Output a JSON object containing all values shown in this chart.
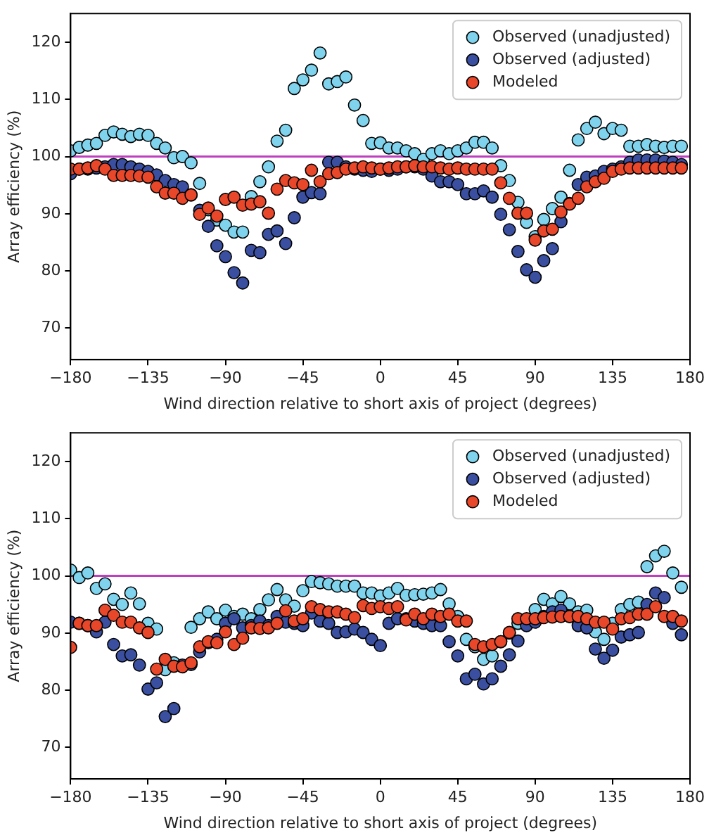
{
  "chart_data": [
    {
      "type": "scatter",
      "xlabel": "Wind direction relative to short axis of project (degrees)",
      "ylabel": "Array efficiency (%)",
      "x": [
        -180,
        -175,
        -170,
        -165,
        -160,
        -155,
        -150,
        -145,
        -140,
        -135,
        -130,
        -125,
        -120,
        -115,
        -110,
        -105,
        -100,
        -95,
        -90,
        -85,
        -80,
        -75,
        -70,
        -65,
        -60,
        -55,
        -50,
        -45,
        -40,
        -35,
        -30,
        -25,
        -20,
        -15,
        -10,
        -5,
        0,
        5,
        10,
        15,
        20,
        25,
        30,
        35,
        40,
        45,
        50,
        55,
        60,
        65,
        70,
        75,
        80,
        85,
        90,
        95,
        100,
        105,
        110,
        115,
        120,
        125,
        130,
        135,
        140,
        145,
        150,
        155,
        160,
        165,
        170,
        175
      ],
      "xlim": [
        -180,
        180
      ],
      "xticks": [
        -180,
        -135,
        -90,
        -45,
        0,
        45,
        90,
        135,
        180
      ],
      "ylim": [
        64.5,
        125
      ],
      "yticks": [
        70,
        80,
        90,
        100,
        110,
        120
      ],
      "grid": false,
      "legend": "top right",
      "marker": "circle",
      "ref_lines": [
        {
          "axis": "y",
          "value": 100,
          "color": "#bf40bf"
        }
      ],
      "series": [
        {
          "name": "Observed (unadjusted)",
          "color": "#7fd3ec",
          "values": [
            101,
            101.6,
            102,
            102.3,
            103.7,
            104.3,
            103.9,
            103.5,
            103.9,
            103.7,
            102.3,
            101.5,
            99.8,
            100,
            98.9,
            95.3,
            90.7,
            88.9,
            88,
            86.8,
            86.8,
            93,
            95.6,
            98.2,
            102.7,
            104.6,
            111.9,
            113.4,
            115.1,
            118.1,
            112.7,
            113.1,
            113.9,
            109,
            106.3,
            102.3,
            102.4,
            101.5,
            101.5,
            101,
            100.5,
            99.5,
            100.5,
            101,
            100.5,
            101,
            101.5,
            102.5,
            102.5,
            101.5,
            98.4,
            95.8,
            92,
            88.5,
            86,
            89,
            90.9,
            92.9,
            97.6,
            102.9,
            104.9,
            106,
            104,
            104.9,
            104.6,
            101.8,
            101.8,
            102.1,
            101.8,
            101.6,
            101.8,
            101.8
          ]
        },
        {
          "name": "Observed (adjusted)",
          "color": "#3a4fa0",
          "values": [
            97,
            97.8,
            97.8,
            98,
            98.2,
            98.6,
            98.6,
            98.2,
            97.8,
            97.4,
            96.8,
            95.8,
            95.1,
            94.7,
            93.3,
            90.6,
            87.8,
            84.4,
            82.5,
            79.7,
            77.9,
            83.6,
            83.2,
            86.4,
            87,
            84.8,
            89.3,
            92.9,
            93.7,
            93.5,
            99,
            99,
            98.2,
            97.8,
            97.6,
            97.4,
            97.8,
            97.6,
            97.8,
            98.2,
            98.2,
            97.8,
            96.6,
            95.6,
            95.6,
            95.1,
            93.5,
            93.5,
            94,
            92.9,
            89.9,
            87.2,
            83.4,
            80.2,
            78.9,
            81.8,
            83.9,
            88.6,
            91.8,
            95.1,
            96.4,
            96.6,
            97.4,
            97.8,
            98.2,
            99,
            99.4,
            99.4,
            99.4,
            99.2,
            99,
            98.6
          ]
        },
        {
          "name": "Modeled",
          "color": "#e8472a",
          "values": [
            97.8,
            97.8,
            98,
            98.4,
            97.8,
            96.7,
            96.7,
            96.7,
            96.6,
            96.4,
            94.7,
            93.6,
            93.6,
            92.7,
            93.3,
            89.9,
            91,
            89.6,
            92.5,
            92.9,
            91.5,
            91.7,
            92.1,
            90.1,
            94.3,
            95.8,
            95.4,
            95.1,
            97.6,
            95.6,
            97,
            97.2,
            97.8,
            98,
            98.2,
            98,
            97.8,
            98,
            98.2,
            98.2,
            98.4,
            98.2,
            98.2,
            98,
            97.8,
            98,
            97.8,
            97.8,
            97.8,
            97.8,
            95.4,
            92.7,
            90.1,
            90.1,
            85.4,
            87,
            87.3,
            90.3,
            91.7,
            92.7,
            94.7,
            95.6,
            96.2,
            97.4,
            97.8,
            98,
            98,
            98,
            98,
            98,
            98,
            98
          ]
        }
      ]
    },
    {
      "type": "scatter",
      "xlabel": "Wind direction relative to short axis of project (degrees)",
      "ylabel": "Array efficiency (%)",
      "x": [
        -180,
        -175,
        -170,
        -165,
        -160,
        -155,
        -150,
        -145,
        -140,
        -135,
        -130,
        -125,
        -120,
        -115,
        -110,
        -105,
        -100,
        -95,
        -90,
        -85,
        -80,
        -75,
        -70,
        -65,
        -60,
        -55,
        -50,
        -45,
        -40,
        -35,
        -30,
        -25,
        -20,
        -15,
        -10,
        -5,
        0,
        5,
        10,
        15,
        20,
        25,
        30,
        35,
        40,
        45,
        50,
        55,
        60,
        65,
        70,
        75,
        80,
        85,
        90,
        95,
        100,
        105,
        110,
        115,
        120,
        125,
        130,
        135,
        140,
        145,
        150,
        155,
        160,
        165,
        170,
        175
      ],
      "xlim": [
        -180,
        180
      ],
      "xticks": [
        -180,
        -135,
        -90,
        -45,
        0,
        45,
        90,
        135,
        180
      ],
      "ylim": [
        64.5,
        125
      ],
      "yticks": [
        70,
        80,
        90,
        100,
        110,
        120
      ],
      "grid": false,
      "legend": "top right",
      "marker": "circle",
      "ref_lines": [
        {
          "axis": "y",
          "value": 100,
          "color": "#bf40bf"
        }
      ],
      "series": [
        {
          "name": "Observed (unadjusted)",
          "color": "#7fd3ec",
          "values": [
            101,
            99.7,
            100.5,
            97.8,
            98.6,
            95.9,
            95,
            97,
            95.1,
            91.7,
            90.7,
            83.6,
            84.8,
            null,
            91,
            92.5,
            93.7,
            92.5,
            94,
            92.9,
            93.3,
            92.5,
            94.1,
            95.8,
            97.6,
            95.8,
            94.7,
            97.4,
            99,
            98.8,
            98.6,
            98.2,
            98.2,
            98.2,
            97,
            97,
            96.5,
            97,
            97.8,
            96.6,
            96.7,
            96.8,
            97,
            97.6,
            95.1,
            92.9,
            88.9,
            87.6,
            85.4,
            86,
            88.5,
            90,
            91.7,
            null,
            94.1,
            95.9,
            95.1,
            96.4,
            95.1,
            93.7,
            94,
            90.2,
            88.9,
            91.7,
            94.1,
            95,
            95.4,
            101.6,
            103.5,
            104.3,
            100.5,
            98
          ]
        },
        {
          "name": "Observed (adjusted)",
          "color": "#3a4fa0",
          "values": [
            91.9,
            91.7,
            91.3,
            90.2,
            91.9,
            88,
            86,
            86.2,
            84.4,
            80.2,
            81.3,
            75.4,
            76.8,
            84.4,
            84.5,
            86.7,
            88.3,
            88.9,
            91.7,
            92.5,
            90.9,
            91.3,
            92.1,
            91.3,
            92.9,
            91.9,
            91.7,
            91.3,
            93.5,
            92.1,
            91.7,
            90.1,
            90.2,
            90.7,
            90.1,
            88.9,
            87.8,
            91.7,
            92.5,
            92.5,
            92.1,
            91.7,
            91.3,
            91.3,
            88.5,
            86,
            82,
            82.8,
            81.1,
            82,
            84.2,
            86.2,
            88.6,
            91.3,
            91.9,
            92.9,
            93.7,
            94,
            92.9,
            91.3,
            90.9,
            87.2,
            85.6,
            87,
            89.3,
            89.7,
            90.1,
            95,
            97,
            96.2,
            91.7,
            89.7
          ]
        },
        {
          "name": "Modeled",
          "color": "#e8472a",
          "values": [
            87.5,
            91.7,
            91.3,
            91.3,
            94,
            93.1,
            91.9,
            91.9,
            90.9,
            90.1,
            83.7,
            85.4,
            84.2,
            84.1,
            84.8,
            87.6,
            88.5,
            88.3,
            90.2,
            88,
            89.1,
            90.9,
            90.8,
            90.9,
            91.7,
            93.9,
            92.1,
            92.5,
            94.6,
            94.1,
            93.7,
            93.7,
            93.3,
            92.7,
            94.8,
            94.3,
            94.6,
            94.3,
            94.6,
            92.3,
            93.3,
            92.5,
            93.3,
            92.9,
            93.3,
            92.1,
            92.1,
            88,
            87.6,
            88,
            88.5,
            90.1,
            92.5,
            92.5,
            92.5,
            92.7,
            92.8,
            92.9,
            92.9,
            92.9,
            92.5,
            91.9,
            91.9,
            90.7,
            92.5,
            92.7,
            93.3,
            93.3,
            94.6,
            92.9,
            92.9,
            92.1
          ]
        }
      ]
    }
  ]
}
